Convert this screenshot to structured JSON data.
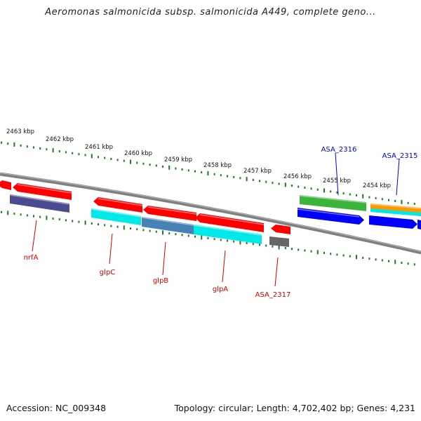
{
  "header": {
    "title": "Aeromonas salmonicida subsp. salmonicida A449, complete geno..."
  },
  "footer": {
    "accession_text": "Accession: NC_009348",
    "summary_text": "Topology: circular; Length: 4,702,402 bp; Genes: 4,231"
  },
  "scale": {
    "unit": "kbp",
    "labels": [
      "2463 kbp",
      "2462 kbp",
      "2461 kbp",
      "2460 kbp",
      "2459 kbp",
      "2458 kbp",
      "2457 kbp",
      "2456 kbp",
      "2455 kbp",
      "2454 kbp"
    ]
  },
  "colors": {
    "backbone": "#808080",
    "tick": "#1e7a1e",
    "label_reverse": "#cc0000",
    "label_forward": "#0000cc",
    "gene_red": "#ff0000",
    "purple": "#4b4b8f",
    "cyan": "#00e8e8",
    "steel": "#4682b4",
    "gray_feature": "#666666",
    "green": "#3cb43c",
    "blue": "#0000ff",
    "orange": "#ff9900"
  },
  "genes": [
    {
      "label": "nrfA",
      "strand": "reverse",
      "color_key": "label_reverse"
    },
    {
      "label": "glpC",
      "strand": "reverse",
      "color_key": "label_reverse"
    },
    {
      "label": "glpB",
      "strand": "reverse",
      "color_key": "label_reverse"
    },
    {
      "label": "glpA",
      "strand": "reverse",
      "color_key": "label_reverse"
    },
    {
      "label": "ASA_2317",
      "strand": "reverse",
      "color_key": "label_reverse"
    },
    {
      "label": "ASA_2316",
      "strand": "forward",
      "color_key": "label_forward"
    },
    {
      "label": "ASA_2315",
      "strand": "forward",
      "color_key": "label_forward"
    }
  ]
}
